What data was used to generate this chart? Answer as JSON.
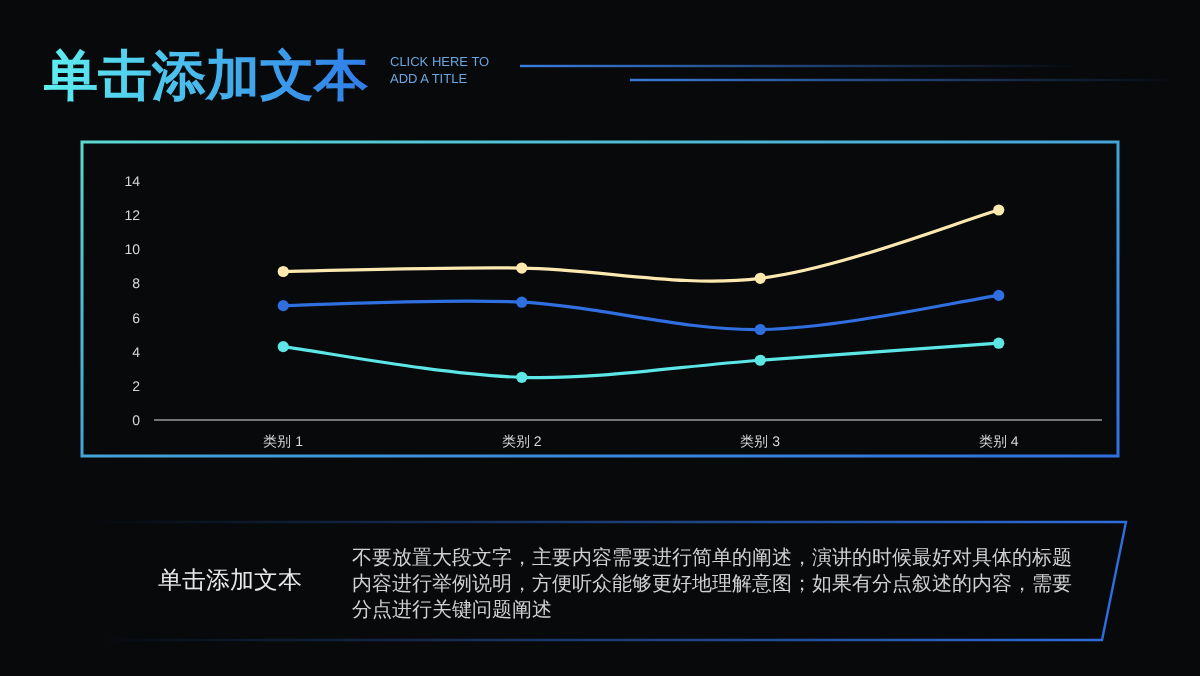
{
  "chart_data": {
    "type": "line",
    "title": "单击添加文本",
    "subtitle": "CLICK HERE TO ADD A TITLE",
    "categories": [
      "类别 1",
      "类别 2",
      "类别 3",
      "类别 4"
    ],
    "series": [
      {
        "color": "#fde9b0",
        "values": [
          8.7,
          8.9,
          8.3,
          12.3
        ]
      },
      {
        "color": "#2f6fe0",
        "values": [
          6.7,
          6.9,
          5.3,
          7.3
        ]
      },
      {
        "color": "#5de6e6",
        "values": [
          4.3,
          2.5,
          3.5,
          4.5
        ]
      }
    ],
    "ylim": [
      0,
      14
    ],
    "yticks": [
      0,
      2,
      4,
      6,
      8,
      10,
      12,
      14
    ],
    "grid": false,
    "marker": "circle",
    "line_style": "solid",
    "annotations": [
      "单击添加文本",
      "不要放置大段文字，主要内容需要进行简单的阐述，演讲的时候最好对具体的标题内容进行举例说明，方便听众能够更好地理解意图；如果有分点叙述的内容，需要分点进行关键问题阐述"
    ]
  }
}
